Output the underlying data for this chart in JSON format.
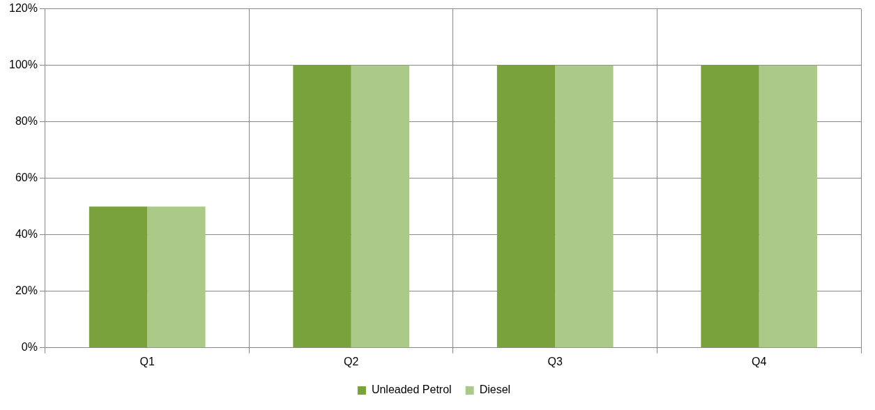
{
  "chart_data": {
    "type": "bar",
    "categories": [
      "Q1",
      "Q2",
      "Q3",
      "Q4"
    ],
    "series": [
      {
        "name": "Unleaded Petrol",
        "color": "#7aa23c",
        "values": [
          50,
          100,
          100,
          100
        ]
      },
      {
        "name": "Diesel",
        "color": "#abc987",
        "values": [
          50,
          100,
          100,
          100
        ]
      }
    ],
    "ylim": [
      0,
      120
    ],
    "yticks": [
      {
        "value": 0,
        "label": "0%"
      },
      {
        "value": 20,
        "label": "20%"
      },
      {
        "value": 40,
        "label": "40%"
      },
      {
        "value": 60,
        "label": "60%"
      },
      {
        "value": 80,
        "label": "80%"
      },
      {
        "value": 100,
        "label": "100%"
      },
      {
        "value": 120,
        "label": "120%"
      }
    ],
    "grid": true,
    "legend": "bottom"
  }
}
